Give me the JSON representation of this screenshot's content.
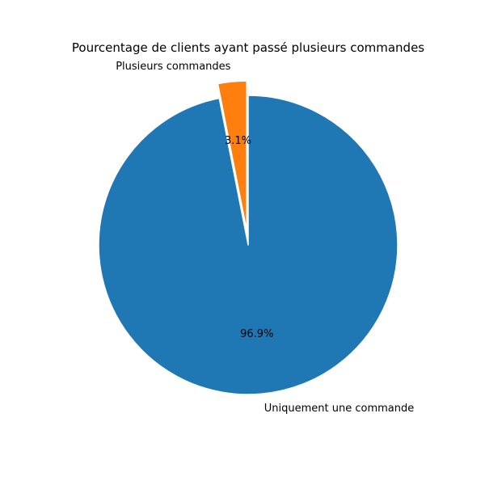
{
  "chart_data": {
    "type": "pie",
    "title": "Pourcentage de clients ayant passé plusieurs commandes",
    "slices": [
      {
        "label": "Uniquement une commande",
        "value": 96.9,
        "pct_label": "96.9%",
        "color": "#1f77b4",
        "exploded": false
      },
      {
        "label": "Plusieurs commandes",
        "value": 3.1,
        "pct_label": "3.1%",
        "color": "#ff7f0e",
        "exploded": true
      }
    ],
    "start_angle": 90,
    "direction": "clockwise",
    "legend": "none"
  }
}
